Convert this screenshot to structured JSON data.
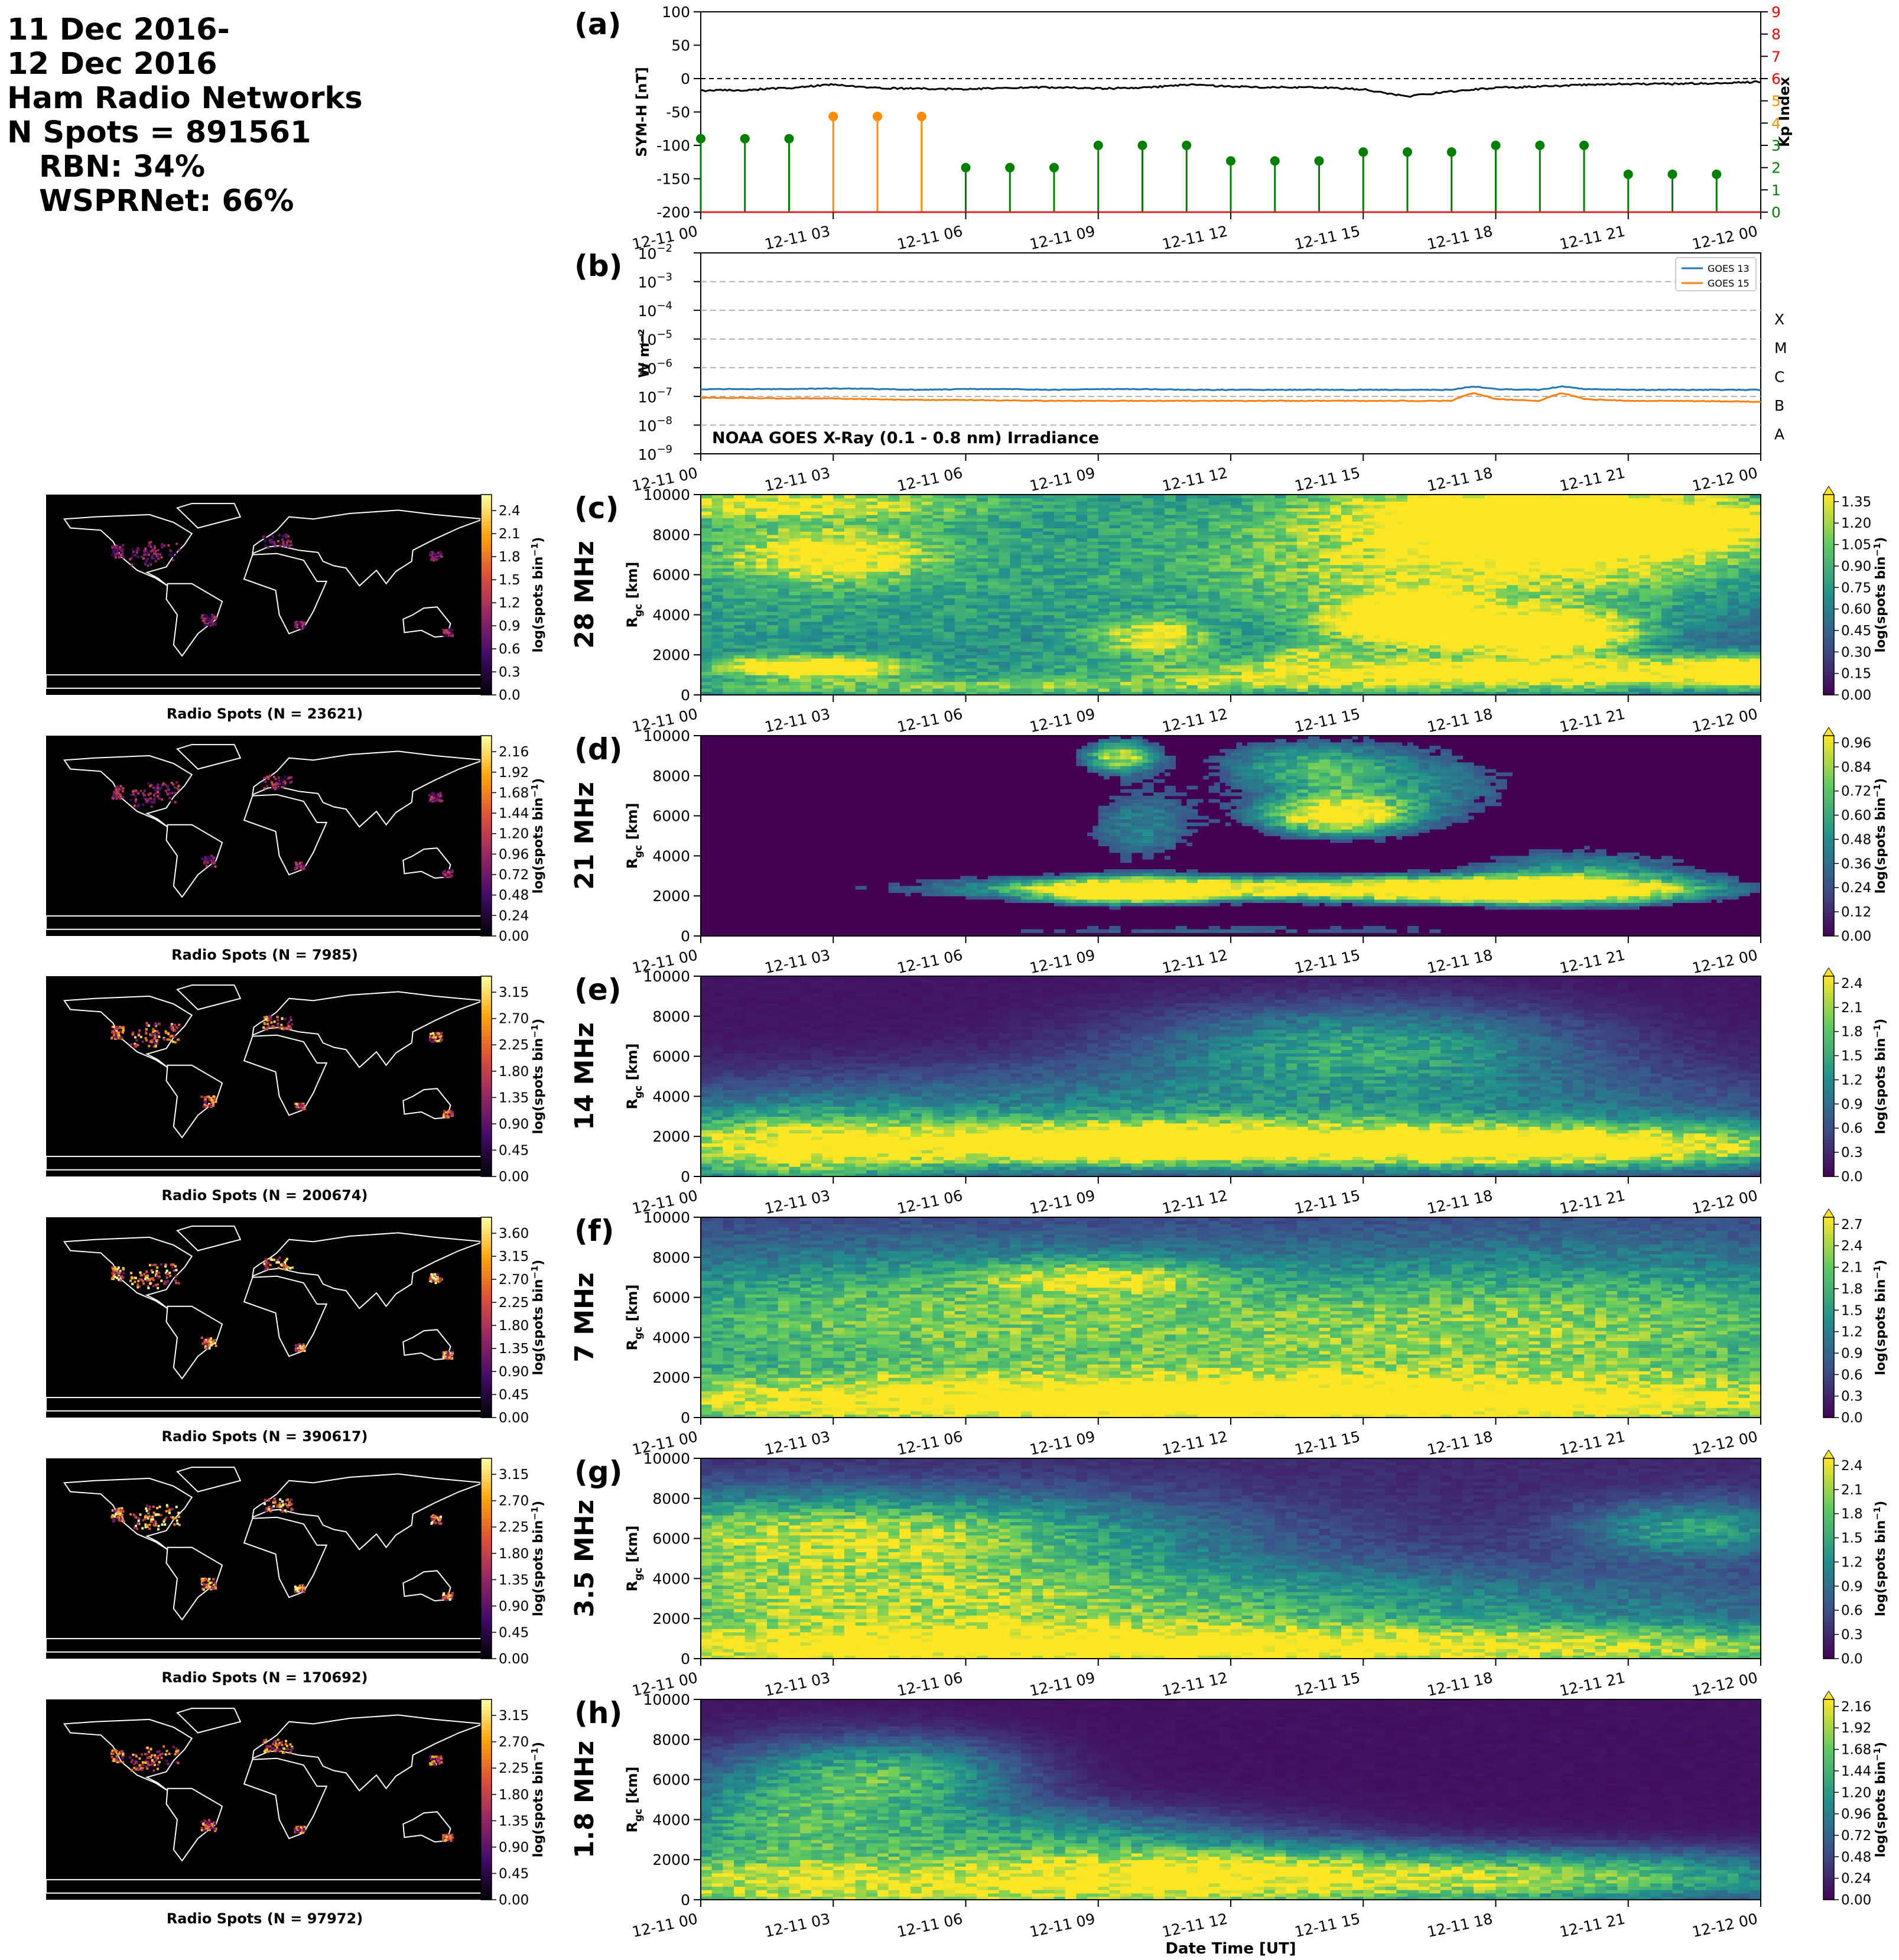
{
  "header": {
    "line1": "11 Dec 2016-",
    "line2": "12 Dec 2016",
    "line3": "Ham Radio Networks",
    "line4": "N Spots = 891561",
    "line5": "RBN: 34%",
    "line6": "WSPRNet: 66%"
  },
  "colors": {
    "symh_line": "#000000",
    "kp_green": "#008000",
    "kp_orange": "#ff8c00",
    "kp_axis": "#ff0000",
    "goes13": "#1f77b4",
    "goes15": "#ff7f0e",
    "viridis": [
      "#440154",
      "#3b528b",
      "#21918c",
      "#5ec962",
      "#fde725"
    ],
    "inferno": [
      "#000004",
      "#420a68",
      "#932667",
      "#dd513a",
      "#fca50a",
      "#fcffa4"
    ]
  },
  "time_ticks": [
    "12-11 00",
    "12-11 03",
    "12-11 06",
    "12-11 09",
    "12-11 12",
    "12-11 15",
    "12-11 18",
    "12-11 21",
    "12-12 00"
  ],
  "xlabel": "Date Time [UT]",
  "chart_data": [
    {
      "type": "line",
      "panel": "(a)",
      "ylabel": "SYM-H [nT]",
      "ylim": [
        -200,
        100
      ],
      "yticks": [
        100,
        50,
        0,
        -50,
        -100,
        -150,
        -200
      ],
      "x_hours": [
        0,
        1,
        2,
        3,
        4,
        5,
        6,
        7,
        8,
        9,
        10,
        11,
        12,
        13,
        14,
        15,
        16,
        17,
        18,
        19,
        20,
        21,
        22,
        23,
        24
      ],
      "symh": [
        -18,
        -17,
        -14,
        -9,
        -14,
        -15,
        -16,
        -14,
        -13,
        -15,
        -14,
        -9,
        -12,
        -13,
        -13,
        -16,
        -27,
        -19,
        -14,
        -12,
        -9,
        -8,
        -8,
        -7,
        -5
      ],
      "reference_line": 0,
      "y2label": "Kp Index",
      "y2lim": [
        0,
        9
      ],
      "y2ticks": [
        0,
        1,
        2,
        3,
        4,
        5,
        6,
        7,
        8,
        9
      ],
      "kp_hours": [
        0,
        1,
        2,
        3,
        4,
        5,
        6,
        7,
        8,
        9,
        10,
        11,
        12,
        13,
        14,
        15,
        16,
        17,
        18,
        19,
        20,
        21,
        22,
        23
      ],
      "kp": [
        3.3,
        3.3,
        3.3,
        4.3,
        4.3,
        4.3,
        2.0,
        2.0,
        2.0,
        3.0,
        3.0,
        3.0,
        2.3,
        2.3,
        2.3,
        2.7,
        2.7,
        2.7,
        3.0,
        3.0,
        3.0,
        1.7,
        1.7,
        1.7
      ]
    },
    {
      "type": "line",
      "panel": "(b)",
      "ylabel": "W m⁻²",
      "yscale": "log",
      "ylim": [
        1e-09,
        0.01
      ],
      "ytick_exponents": [
        -9,
        -8,
        -7,
        -6,
        -5,
        -4,
        -3,
        -2
      ],
      "flare_classes": [
        "A",
        "B",
        "C",
        "M",
        "X"
      ],
      "annotation": "NOAA GOES X-Ray (0.1 - 0.8 nm) Irradiance",
      "x_hours": [
        0,
        1,
        2,
        3,
        4,
        5,
        6,
        7,
        8,
        9,
        10,
        11,
        12,
        13,
        14,
        15,
        16,
        17,
        17.5,
        18,
        19,
        19.5,
        20,
        21,
        22,
        23,
        24
      ],
      "series": [
        {
          "name": "GOES 13",
          "values": [
            1.8e-07,
            1.8e-07,
            1.8e-07,
            1.9e-07,
            1.8e-07,
            1.7e-07,
            1.8e-07,
            1.8e-07,
            1.7e-07,
            1.8e-07,
            1.8e-07,
            1.7e-07,
            1.7e-07,
            1.7e-07,
            1.7e-07,
            1.7e-07,
            1.7e-07,
            1.7e-07,
            2.2e-07,
            1.8e-07,
            1.7e-07,
            2.2e-07,
            1.8e-07,
            1.7e-07,
            1.7e-07,
            1.7e-07,
            1.7e-07
          ]
        },
        {
          "name": "GOES 15",
          "values": [
            9e-08,
            8.8e-08,
            8.5e-08,
            8.5e-08,
            8e-08,
            7.5e-08,
            7.5e-08,
            7.2e-08,
            7e-08,
            7e-08,
            7e-08,
            7e-08,
            7e-08,
            7e-08,
            7e-08,
            7e-08,
            7e-08,
            7e-08,
            1.3e-07,
            8e-08,
            7e-08,
            1.3e-07,
            8e-08,
            7e-08,
            7e-08,
            6.8e-08,
            6.5e-08
          ]
        }
      ]
    },
    {
      "type": "heatmap",
      "panel": "(c)",
      "band": "28 MHz",
      "ylabel": "R_gc [km]",
      "yticks": [
        0,
        2000,
        4000,
        6000,
        8000,
        10000
      ],
      "cbar_label": "log(spots bin⁻¹)",
      "cbar_ticks": [
        "0.00",
        "0.15",
        "0.30",
        "0.45",
        "0.60",
        "0.75",
        "0.90",
        "1.05",
        "1.20",
        "1.35"
      ],
      "map_caption": "Radio Spots (N = 23621)",
      "map_cbar_ticks": [
        "0.0",
        "0.3",
        "0.6",
        "0.9",
        "1.2",
        "1.5",
        "1.8",
        "2.1",
        "2.4"
      ]
    },
    {
      "type": "heatmap",
      "panel": "(d)",
      "band": "21 MHz",
      "ylabel": "R_gc [km]",
      "yticks": [
        0,
        2000,
        4000,
        6000,
        8000,
        10000
      ],
      "cbar_label": "log(spots bin⁻¹)",
      "cbar_ticks": [
        "0.00",
        "0.12",
        "0.24",
        "0.36",
        "0.48",
        "0.60",
        "0.72",
        "0.84",
        "0.96"
      ],
      "map_caption": "Radio Spots (N = 7985)",
      "map_cbar_ticks": [
        "0.00",
        "0.24",
        "0.48",
        "0.72",
        "0.96",
        "1.20",
        "1.44",
        "1.68",
        "1.92",
        "2.16"
      ]
    },
    {
      "type": "heatmap",
      "panel": "(e)",
      "band": "14 MHz",
      "ylabel": "R_gc [km]",
      "yticks": [
        0,
        2000,
        4000,
        6000,
        8000,
        10000
      ],
      "cbar_label": "log(spots bin⁻¹)",
      "cbar_ticks": [
        "0.0",
        "0.3",
        "0.6",
        "0.9",
        "1.2",
        "1.5",
        "1.8",
        "2.1",
        "2.4"
      ],
      "map_caption": "Radio Spots (N = 200674)",
      "map_cbar_ticks": [
        "0.00",
        "0.45",
        "0.90",
        "1.35",
        "1.80",
        "2.25",
        "2.70",
        "3.15"
      ]
    },
    {
      "type": "heatmap",
      "panel": "(f)",
      "band": "7 MHz",
      "ylabel": "R_gc [km]",
      "yticks": [
        0,
        2000,
        4000,
        6000,
        8000,
        10000
      ],
      "cbar_label": "log(spots bin⁻¹)",
      "cbar_ticks": [
        "0.0",
        "0.3",
        "0.6",
        "0.9",
        "1.2",
        "1.5",
        "1.8",
        "2.1",
        "2.4",
        "2.7"
      ],
      "map_caption": "Radio Spots (N = 390617)",
      "map_cbar_ticks": [
        "0.00",
        "0.45",
        "0.90",
        "1.35",
        "1.80",
        "2.25",
        "2.70",
        "3.15",
        "3.60"
      ]
    },
    {
      "type": "heatmap",
      "panel": "(g)",
      "band": "3.5 MHz",
      "ylabel": "R_gc [km]",
      "yticks": [
        0,
        2000,
        4000,
        6000,
        8000,
        10000
      ],
      "cbar_label": "log(spots bin⁻¹)",
      "cbar_ticks": [
        "0.0",
        "0.3",
        "0.6",
        "0.9",
        "1.2",
        "1.5",
        "1.8",
        "2.1",
        "2.4"
      ],
      "map_caption": "Radio Spots (N = 170692)",
      "map_cbar_ticks": [
        "0.00",
        "0.45",
        "0.90",
        "1.35",
        "1.80",
        "2.25",
        "2.70",
        "3.15"
      ]
    },
    {
      "type": "heatmap",
      "panel": "(h)",
      "band": "1.8 MHz",
      "ylabel": "R_gc [km]",
      "yticks": [
        0,
        2000,
        4000,
        6000,
        8000,
        10000
      ],
      "cbar_label": "log(spots bin⁻¹)",
      "cbar_ticks": [
        "0.00",
        "0.24",
        "0.48",
        "0.72",
        "0.96",
        "1.20",
        "1.44",
        "1.68",
        "1.92",
        "2.16"
      ],
      "map_caption": "Radio Spots (N = 97972)",
      "map_cbar_ticks": [
        "0.00",
        "0.45",
        "0.90",
        "1.35",
        "1.80",
        "2.25",
        "2.70",
        "3.15"
      ]
    }
  ]
}
